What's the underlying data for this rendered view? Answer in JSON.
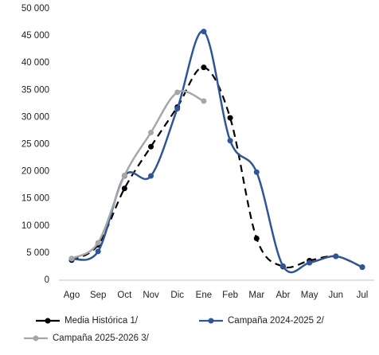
{
  "chart_data": {
    "type": "line",
    "categories": [
      "Ago",
      "Sep",
      "Oct",
      "Nov",
      "Dic",
      "Ene",
      "Feb",
      "Mar",
      "Abr",
      "May",
      "Jun",
      "Jul"
    ],
    "series": [
      {
        "name": "Media Histórica 1/",
        "color": "#000000",
        "dashed": true,
        "values": [
          3700,
          6500,
          16900,
          24600,
          31900,
          39200,
          29900,
          7700,
          2500,
          3600,
          4400,
          2400
        ]
      },
      {
        "name": "Campaña 2024-2025 2/",
        "color": "#2f5597",
        "dashed": false,
        "values": [
          3900,
          5300,
          19200,
          19200,
          31600,
          45800,
          25700,
          19900,
          2600,
          3200,
          4400,
          2400
        ]
      },
      {
        "name": "Campaña 2025-2026 3/",
        "color": "#a6a6a6",
        "dashed": false,
        "values": [
          4000,
          6900,
          19300,
          27200,
          34600,
          33000,
          null,
          null,
          null,
          null,
          null,
          null
        ]
      }
    ],
    "ylim": [
      0,
      50000
    ],
    "yticks": [
      {
        "value": 0,
        "label": "0"
      },
      {
        "value": 5000,
        "label": "5 000"
      },
      {
        "value": 10000,
        "label": "10 000"
      },
      {
        "value": 15000,
        "label": "15 000"
      },
      {
        "value": 20000,
        "label": "20 000"
      },
      {
        "value": 25000,
        "label": "25 000"
      },
      {
        "value": 30000,
        "label": "30 000"
      },
      {
        "value": 35000,
        "label": "35 000"
      },
      {
        "value": 40000,
        "label": "40 000"
      },
      {
        "value": 45000,
        "label": "45 000"
      },
      {
        "value": 50000,
        "label": "50 000"
      }
    ],
    "grid": false
  }
}
